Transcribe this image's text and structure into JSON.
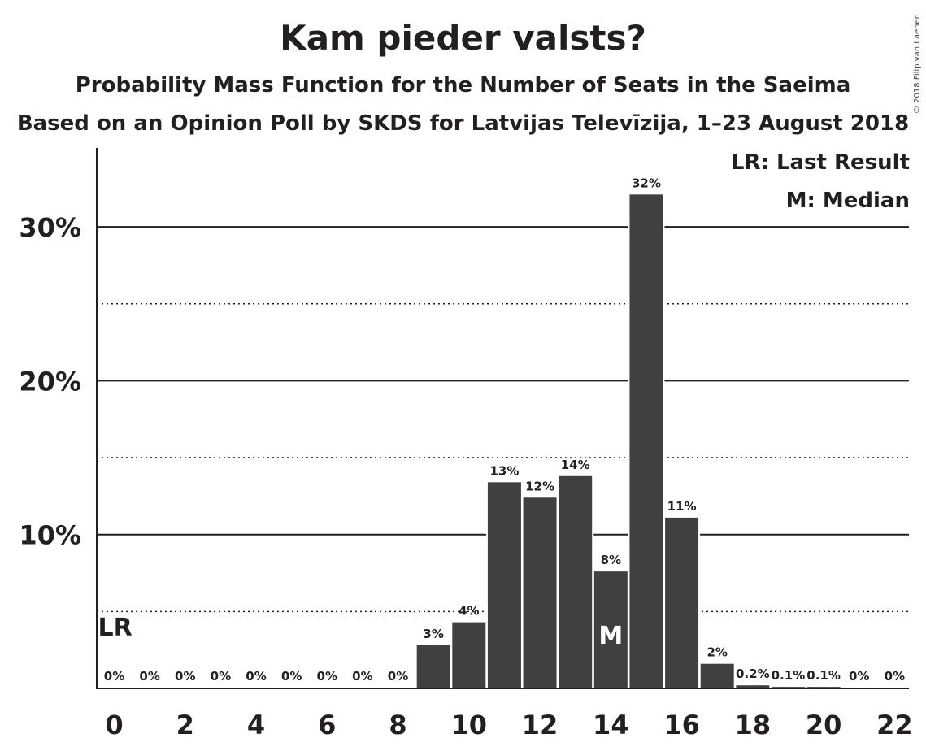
{
  "title": "Kam pieder valsts?",
  "subtitle": "Probability Mass Function for the Number of Seats in the Saeima",
  "subtitle2": "Based on an Opinion Poll by SKDS for Latvijas Televīzija, 1–23 August 2018",
  "legend": {
    "lr": "LR: Last Result",
    "m": "M: Median"
  },
  "copyright": "© 2018 Filip van Laenen",
  "colors": {
    "bar": "#404040",
    "text": "#231f20",
    "median_label": "#ffffff"
  },
  "chart_data": {
    "type": "bar",
    "title": "Kam pieder valsts?",
    "xlabel": "",
    "ylabel": "",
    "categories": [
      0,
      1,
      2,
      3,
      4,
      5,
      6,
      7,
      8,
      9,
      10,
      11,
      12,
      13,
      14,
      15,
      16,
      17,
      18,
      19,
      20,
      21,
      22
    ],
    "values": [
      0,
      0,
      0,
      0,
      0,
      0,
      0,
      0,
      0,
      2.8,
      4.3,
      13.4,
      12.4,
      13.8,
      7.6,
      32.1,
      11.1,
      1.6,
      0.2,
      0.1,
      0.1,
      0,
      0
    ],
    "data_labels": [
      "0%",
      "0%",
      "0%",
      "0%",
      "0%",
      "0%",
      "0%",
      "0%",
      "0%",
      "3%",
      "4%",
      "13%",
      "12%",
      "14%",
      "8%",
      "32%",
      "11%",
      "2%",
      "0.2%",
      "0.1%",
      "0.1%",
      "0%",
      "0%"
    ],
    "ylim": [
      0,
      35
    ],
    "y_major_ticks": [
      10,
      20,
      30
    ],
    "y_minor_ticks": [
      5,
      15,
      25
    ],
    "y_tick_labels": [
      "10%",
      "20%",
      "30%"
    ],
    "x_tick_labels": [
      "0",
      "2",
      "4",
      "6",
      "8",
      "10",
      "12",
      "14",
      "16",
      "18",
      "20",
      "22"
    ],
    "x_tick_values": [
      0,
      2,
      4,
      6,
      8,
      10,
      12,
      14,
      16,
      18,
      20,
      22
    ],
    "last_result": {
      "seats": 0,
      "label": "LR"
    },
    "median": {
      "seats": 14,
      "label": "M"
    },
    "grid": true,
    "legend_position": "top-right"
  }
}
